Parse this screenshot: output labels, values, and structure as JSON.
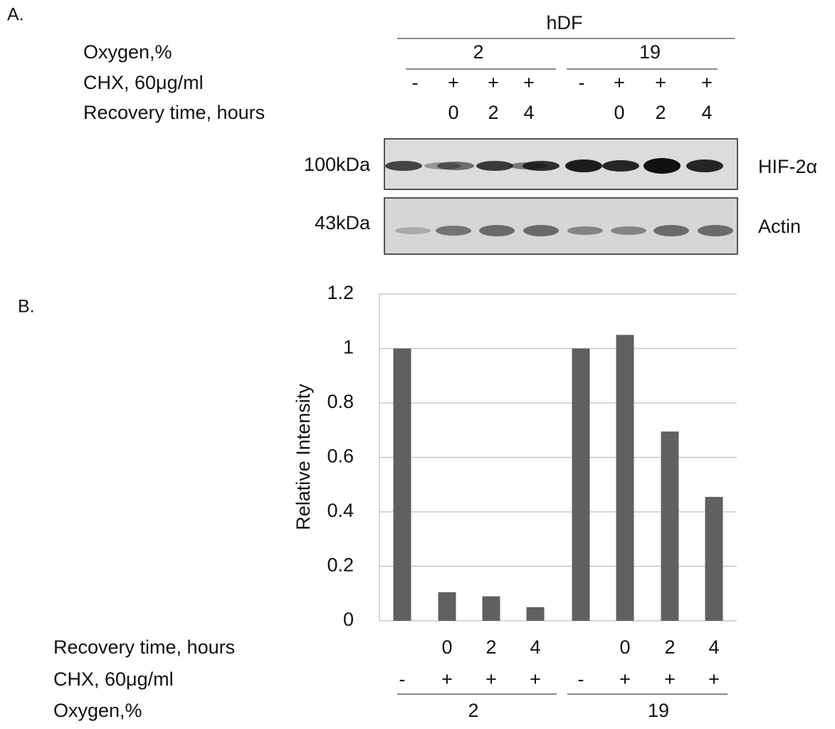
{
  "panel_a": {
    "label": "A.",
    "group": "hDF",
    "oxygen_label": "Oxygen,%",
    "oxygen_groups": [
      "2",
      "19"
    ],
    "chx_label": "CHX, 60μg/ml",
    "chx": [
      "-",
      "+",
      "+",
      "+",
      "-",
      "+",
      "+",
      "+"
    ],
    "recovery_label": "Recovery time, hours",
    "recovery": [
      null,
      "0",
      "2",
      "4",
      null,
      "0",
      "2",
      "4"
    ],
    "blots": [
      {
        "size": "100kDa",
        "protein": "HIF-2α"
      },
      {
        "size": "43kDa",
        "protein": "Actin"
      }
    ]
  },
  "panel_b": {
    "label": "B."
  },
  "chart_data": {
    "type": "bar",
    "ylabel": "Relative Intensity",
    "categories": [
      null,
      null,
      null,
      null,
      null,
      null,
      null,
      null
    ],
    "values": [
      1,
      0.105,
      0.09,
      0.05,
      1,
      1.05,
      0.695,
      0.455
    ],
    "color": "#606060",
    "ylim": [
      0,
      1.2
    ],
    "yticks": [
      0,
      0.2,
      0.4,
      0.6,
      0.8,
      1,
      1.2
    ],
    "grid": true,
    "recovery_label": "Recovery time, hours",
    "recovery": [
      null,
      "0",
      "2",
      "4",
      null,
      "0",
      "2",
      "4"
    ],
    "chx_label": "CHX, 60μg/ml",
    "chx": [
      "-",
      "+",
      "+",
      "+",
      "-",
      "+",
      "+",
      "+"
    ],
    "oxygen_label": "Oxygen,%",
    "oxygen_groups": [
      "2",
      "19"
    ]
  }
}
